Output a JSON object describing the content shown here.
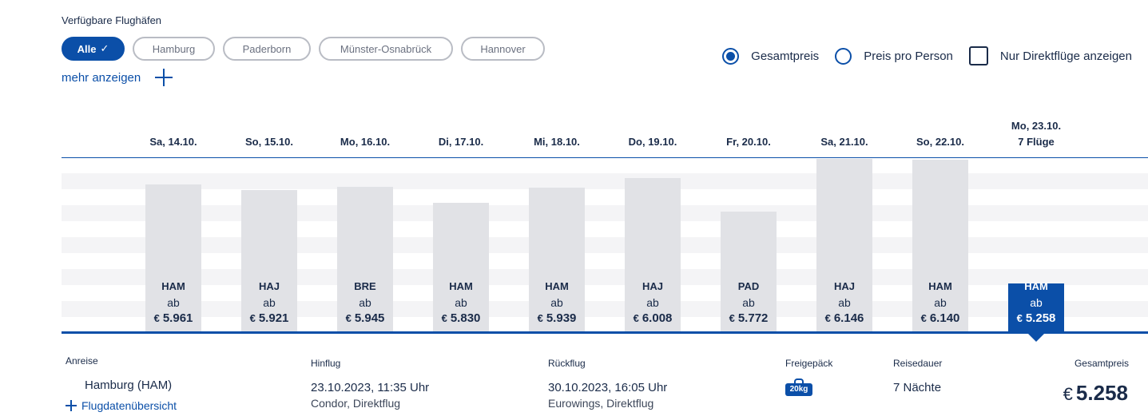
{
  "filters": {
    "airports_label": "Verfügbare Flughäfen",
    "chips": [
      {
        "label": "Alle",
        "active": true
      },
      {
        "label": "Hamburg",
        "active": false
      },
      {
        "label": "Paderborn",
        "active": false
      },
      {
        "label": "Münster-Osnabrück",
        "active": false
      },
      {
        "label": "Hannover",
        "active": false
      }
    ],
    "more_label": "mehr anzeigen"
  },
  "options": {
    "total_price_label": "Gesamtpreis",
    "total_price_selected": true,
    "per_person_label": "Preis pro Person",
    "per_person_selected": false,
    "direct_only_label": "Nur Direktflüge anzeigen",
    "direct_only_checked": false
  },
  "colors": {
    "accent": "#0b4fa8",
    "bar": "#e1e2e6",
    "text": "#1a2b49"
  },
  "chart_data": {
    "type": "bar",
    "categories": [
      "Sa, 14.10.",
      "So, 15.10.",
      "Mo, 16.10.",
      "Di, 17.10.",
      "Mi, 18.10.",
      "Do, 19.10.",
      "Fr, 20.10.",
      "Sa, 21.10.",
      "So, 22.10.",
      "Mo, 23.10."
    ],
    "category_sublabels": [
      "",
      "",
      "",
      "",
      "",
      "",
      "",
      "",
      "",
      "7 Flüge"
    ],
    "airport_codes": [
      "HAM",
      "HAJ",
      "BRE",
      "HAM",
      "HAM",
      "HAJ",
      "PAD",
      "HAJ",
      "HAM",
      "HAM"
    ],
    "prefix": "ab",
    "currency": "€",
    "values": [
      5961,
      5921,
      5945,
      5830,
      5939,
      6008,
      5772,
      6146,
      6140,
      5258
    ],
    "value_labels": [
      "5.961",
      "5.921",
      "5.945",
      "5.830",
      "5.939",
      "6.008",
      "5.772",
      "6.146",
      "6.140",
      "5.258"
    ],
    "selected_index": 9,
    "ylim": [
      4920,
      6150
    ]
  },
  "details": {
    "outbound_label": "Anreise",
    "outbound_airport": "Hamburg  (HAM)",
    "flight_overview_link": "Flugdatenübersicht",
    "departure_label": "Hinflug",
    "departure_datetime": "23.10.2023, 11:35 Uhr",
    "departure_airline": "Condor, Direktflug",
    "return_label": "Rückflug",
    "return_datetime": "30.10.2023, 16:05 Uhr",
    "return_airline": "Eurowings, Direktflug",
    "baggage_label": "Freigepäck",
    "baggage_value": "20kg",
    "duration_label": "Reisedauer",
    "duration_value": "7 Nächte",
    "total_label": "Gesamtpreis",
    "total_currency": "€",
    "total_value": "5.258"
  }
}
